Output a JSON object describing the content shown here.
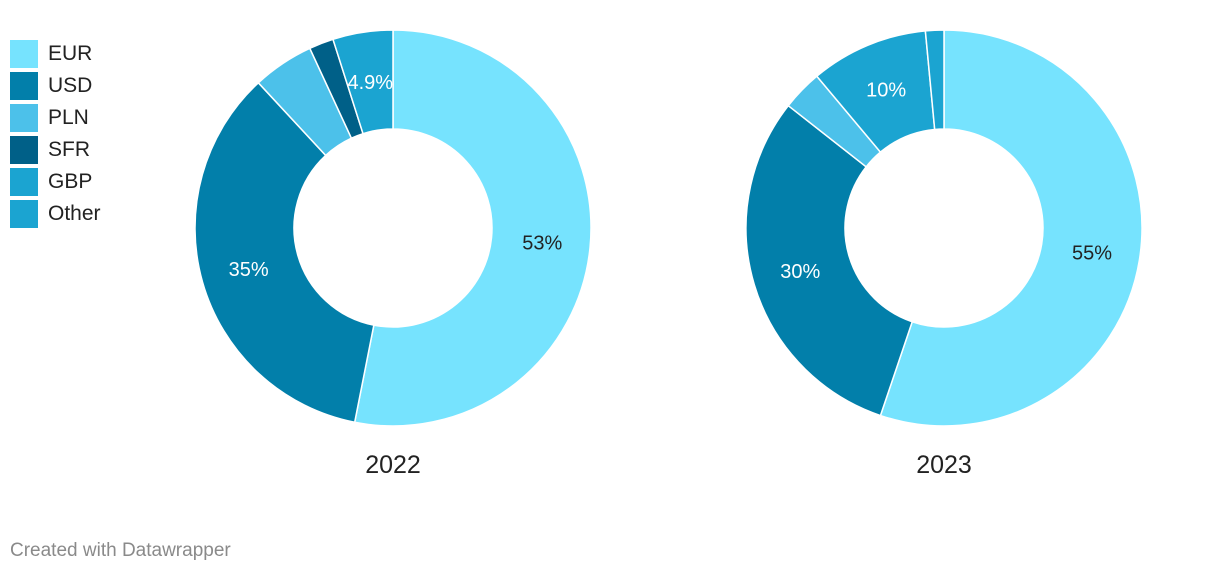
{
  "colors": {
    "EUR": "#76e3fe",
    "USD": "#027faa",
    "PLN": "#4cc1ea",
    "SFR": "#006088",
    "GBP": "#1ba4d1",
    "Other": "#1ba4d1"
  },
  "legend": [
    {
      "label": "EUR",
      "color": "#76e3fe"
    },
    {
      "label": "USD",
      "color": "#027faa"
    },
    {
      "label": "PLN",
      "color": "#4cc1ea"
    },
    {
      "label": "SFR",
      "color": "#006088"
    },
    {
      "label": "GBP",
      "color": "#1ba4d1"
    },
    {
      "label": "Other",
      "color": "#1ba4d1"
    }
  ],
  "chart_data": [
    {
      "type": "pie",
      "title": "2022",
      "categories": [
        "EUR",
        "USD",
        "PLN",
        "SFR",
        "Other"
      ],
      "values": [
        53.1,
        35.0,
        5.0,
        2.0,
        4.9
      ],
      "data_labels": [
        "53%",
        "35%",
        "",
        "",
        "4.9%"
      ]
    },
    {
      "type": "pie",
      "title": "2023",
      "categories": [
        "EUR",
        "USD",
        "PLN",
        "GBP",
        "Other"
      ],
      "values": [
        55.2,
        30.4,
        3.3,
        9.6,
        1.5
      ],
      "data_labels": [
        "55%",
        "30%",
        "",
        "10%",
        ""
      ]
    }
  ],
  "footer": {
    "credit": "Created with Datawrapper"
  }
}
